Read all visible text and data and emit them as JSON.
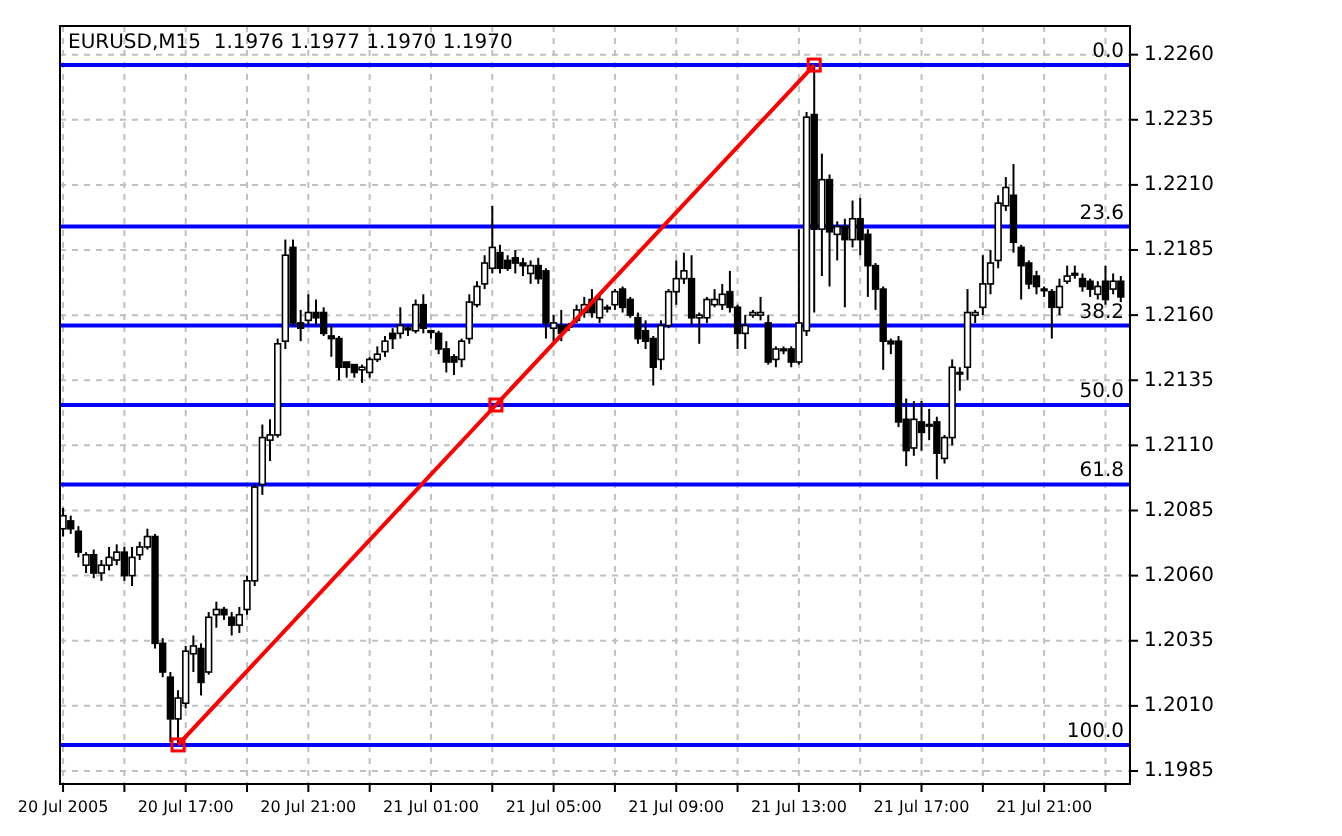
{
  "chart_data": {
    "type": "candlestick",
    "title": "EURUSD,M15  1.1976 1.1977 1.1970 1.1970",
    "color": "#000000",
    "x": [
      "2005-07-20T13:00",
      "2005-07-20T13:15",
      "2005-07-20T13:30",
      "2005-07-20T13:45",
      "2005-07-20T14:00",
      "2005-07-20T14:15",
      "2005-07-20T14:30",
      "2005-07-20T14:45",
      "2005-07-20T15:00",
      "2005-07-20T15:15",
      "2005-07-20T15:30",
      "2005-07-20T15:45",
      "2005-07-20T16:00",
      "2005-07-20T16:15",
      "2005-07-20T16:30",
      "2005-07-20T16:45",
      "2005-07-20T17:00",
      "2005-07-20T17:15",
      "2005-07-20T17:30",
      "2005-07-20T17:45",
      "2005-07-20T18:00",
      "2005-07-20T18:15",
      "2005-07-20T18:30",
      "2005-07-20T18:45",
      "2005-07-20T19:00",
      "2005-07-20T19:15",
      "2005-07-20T19:30",
      "2005-07-20T19:45",
      "2005-07-20T20:00",
      "2005-07-20T20:15",
      "2005-07-20T20:30",
      "2005-07-20T20:45",
      "2005-07-20T21:00",
      "2005-07-20T21:15",
      "2005-07-20T21:30",
      "2005-07-20T21:45",
      "2005-07-20T22:00",
      "2005-07-20T22:15",
      "2005-07-20T22:30",
      "2005-07-20T22:45",
      "2005-07-20T23:00",
      "2005-07-20T23:15",
      "2005-07-20T23:30",
      "2005-07-20T23:45",
      "2005-07-21T00:00",
      "2005-07-21T00:15",
      "2005-07-21T00:30",
      "2005-07-21T00:45",
      "2005-07-21T01:00",
      "2005-07-21T01:15",
      "2005-07-21T01:30",
      "2005-07-21T01:45",
      "2005-07-21T02:00",
      "2005-07-21T02:15",
      "2005-07-21T02:30",
      "2005-07-21T02:45",
      "2005-07-21T03:00",
      "2005-07-21T03:15",
      "2005-07-21T03:30",
      "2005-07-21T03:45",
      "2005-07-21T04:00",
      "2005-07-21T04:15",
      "2005-07-21T04:30",
      "2005-07-21T04:45",
      "2005-07-21T05:00",
      "2005-07-21T05:15",
      "2005-07-21T05:30",
      "2005-07-21T05:45",
      "2005-07-21T06:00",
      "2005-07-21T06:15",
      "2005-07-21T06:30",
      "2005-07-21T06:45",
      "2005-07-21T07:00",
      "2005-07-21T07:15",
      "2005-07-21T07:30",
      "2005-07-21T07:45",
      "2005-07-21T08:00",
      "2005-07-21T08:15",
      "2005-07-21T08:30",
      "2005-07-21T08:45",
      "2005-07-21T09:00",
      "2005-07-21T09:15",
      "2005-07-21T09:30",
      "2005-07-21T09:45",
      "2005-07-21T10:00",
      "2005-07-21T10:15",
      "2005-07-21T10:30",
      "2005-07-21T10:45",
      "2005-07-21T11:00",
      "2005-07-21T11:15",
      "2005-07-21T11:30",
      "2005-07-21T11:45",
      "2005-07-21T12:00",
      "2005-07-21T12:15",
      "2005-07-21T12:30",
      "2005-07-21T12:45",
      "2005-07-21T13:00",
      "2005-07-21T13:15",
      "2005-07-21T13:30",
      "2005-07-21T13:45",
      "2005-07-21T14:00",
      "2005-07-21T14:15",
      "2005-07-21T14:30",
      "2005-07-21T14:45",
      "2005-07-21T15:00",
      "2005-07-21T15:15",
      "2005-07-21T15:30",
      "2005-07-21T15:45",
      "2005-07-21T16:00",
      "2005-07-21T16:15",
      "2005-07-21T16:30",
      "2005-07-21T16:45",
      "2005-07-21T17:00",
      "2005-07-21T17:15",
      "2005-07-21T17:30",
      "2005-07-21T17:45",
      "2005-07-21T18:00",
      "2005-07-21T18:15",
      "2005-07-21T18:30",
      "2005-07-21T18:45",
      "2005-07-21T19:00",
      "2005-07-21T19:15",
      "2005-07-21T19:30",
      "2005-07-21T19:45",
      "2005-07-21T20:00",
      "2005-07-21T20:15",
      "2005-07-21T20:30",
      "2005-07-21T20:45",
      "2005-07-21T21:00",
      "2005-07-21T21:15",
      "2005-07-21T21:30",
      "2005-07-21T21:45",
      "2005-07-21T22:00",
      "2005-07-21T22:15",
      "2005-07-21T22:30",
      "2005-07-21T22:45",
      "2005-07-21T23:00",
      "2005-07-21T23:15",
      "2005-07-21T23:30"
    ],
    "ohlc": [
      [
        1.2078,
        1.2086,
        1.2075,
        1.2083
      ],
      [
        1.2081,
        1.2083,
        1.2076,
        1.2078
      ],
      [
        1.2077,
        1.2079,
        1.2067,
        1.2069
      ],
      [
        1.2064,
        1.2069,
        1.2061,
        1.2068
      ],
      [
        1.2068,
        1.207,
        1.2059,
        1.2061
      ],
      [
        1.2061,
        1.2066,
        1.2058,
        1.2064
      ],
      [
        1.2064,
        1.2071,
        1.2062,
        1.2067
      ],
      [
        1.2066,
        1.2072,
        1.2064,
        1.2069
      ],
      [
        1.2069,
        1.2071,
        1.2058,
        1.206
      ],
      [
        1.206,
        1.2071,
        1.2056,
        1.2067
      ],
      [
        1.2068,
        1.2073,
        1.2066,
        1.2071
      ],
      [
        1.2071,
        1.2078,
        1.207,
        1.2075
      ],
      [
        1.2075,
        1.2076,
        1.2032,
        1.2034
      ],
      [
        1.2034,
        1.2036,
        1.2021,
        1.2023
      ],
      [
        1.2021,
        1.2023,
        1.1996,
        1.2005
      ],
      [
        1.2005,
        1.2016,
        1.1995,
        1.2013
      ],
      [
        1.2011,
        1.2033,
        1.2009,
        1.2031
      ],
      [
        1.203,
        1.2037,
        1.2023,
        1.2033
      ],
      [
        1.2032,
        1.2034,
        1.2014,
        1.2019
      ],
      [
        1.2023,
        1.2046,
        1.2022,
        1.2044
      ],
      [
        1.2045,
        1.205,
        1.204,
        1.2047
      ],
      [
        1.2047,
        1.2048,
        1.2043,
        1.2045
      ],
      [
        1.2044,
        1.2046,
        1.2037,
        1.2041
      ],
      [
        1.2041,
        1.2048,
        1.2038,
        1.2045
      ],
      [
        1.2047,
        1.206,
        1.2045,
        1.2058
      ],
      [
        1.2058,
        1.2095,
        1.2056,
        1.2094
      ],
      [
        1.2095,
        1.2118,
        1.2091,
        1.2113
      ],
      [
        1.2112,
        1.212,
        1.2104,
        1.2114
      ],
      [
        1.2114,
        1.2151,
        1.2113,
        1.2149
      ],
      [
        1.215,
        1.2189,
        1.2147,
        1.2183
      ],
      [
        1.2186,
        1.2189,
        1.2156,
        1.2157
      ],
      [
        1.2157,
        1.2162,
        1.215,
        1.2155
      ],
      [
        1.2158,
        1.2168,
        1.2156,
        1.2161
      ],
      [
        1.2161,
        1.2166,
        1.2156,
        1.2159
      ],
      [
        1.2161,
        1.2163,
        1.2152,
        1.2153
      ],
      [
        1.2152,
        1.2156,
        1.2144,
        1.2151
      ],
      [
        1.2151,
        1.2152,
        1.2135,
        1.214
      ],
      [
        1.2142,
        1.2142,
        1.2136,
        1.214
      ],
      [
        1.2141,
        1.2141,
        1.2136,
        1.2138
      ],
      [
        1.2139,
        1.2141,
        1.2134,
        1.214
      ],
      [
        1.2138,
        1.2144,
        1.2136,
        1.2143
      ],
      [
        1.2143,
        1.2148,
        1.2142,
        1.2145
      ],
      [
        1.2146,
        1.2152,
        1.2144,
        1.215
      ],
      [
        1.2153,
        1.2155,
        1.2147,
        1.2151
      ],
      [
        1.2153,
        1.2163,
        1.2151,
        1.2156
      ],
      [
        1.2155,
        1.2156,
        1.2152,
        1.2155
      ],
      [
        1.2154,
        1.2166,
        1.2153,
        1.2164
      ],
      [
        1.2164,
        1.2168,
        1.2153,
        1.2155
      ],
      [
        1.2154,
        1.2154,
        1.2151,
        1.2154
      ],
      [
        1.2153,
        1.2154,
        1.2145,
        1.2147
      ],
      [
        1.2147,
        1.215,
        1.2138,
        1.2142
      ],
      [
        1.2144,
        1.2145,
        1.2137,
        1.2142
      ],
      [
        1.2143,
        1.2151,
        1.214,
        1.215
      ],
      [
        1.2151,
        1.2168,
        1.2149,
        1.2165
      ],
      [
        1.2164,
        1.2173,
        1.2163,
        1.2171
      ],
      [
        1.2172,
        1.2183,
        1.217,
        1.218
      ],
      [
        1.2178,
        1.2202,
        1.2176,
        1.2186
      ],
      [
        1.2184,
        1.2187,
        1.2176,
        1.2178
      ],
      [
        1.2181,
        1.2183,
        1.2177,
        1.2178
      ],
      [
        1.2182,
        1.2185,
        1.2176,
        1.218
      ],
      [
        1.218,
        1.2182,
        1.2175,
        1.2179
      ],
      [
        1.2176,
        1.2181,
        1.2172,
        1.2179
      ],
      [
        1.2179,
        1.2182,
        1.2172,
        1.2174
      ],
      [
        1.2177,
        1.2178,
        1.2151,
        1.2157
      ],
      [
        1.2155,
        1.216,
        1.215,
        1.2157
      ],
      [
        1.2156,
        1.2162,
        1.215,
        1.2153
      ],
      [
        1.2156,
        1.2157,
        1.2154,
        1.2156
      ],
      [
        1.2158,
        1.2164,
        1.2157,
        1.2162
      ],
      [
        1.2161,
        1.2167,
        1.2159,
        1.2164
      ],
      [
        1.2166,
        1.217,
        1.2159,
        1.2161
      ],
      [
        1.2159,
        1.2168,
        1.2157,
        1.2166
      ],
      [
        1.2163,
        1.2164,
        1.2161,
        1.2163
      ],
      [
        1.2164,
        1.217,
        1.2162,
        1.2169
      ],
      [
        1.217,
        1.2171,
        1.2161,
        1.2163
      ],
      [
        1.2166,
        1.2167,
        1.2159,
        1.216
      ],
      [
        1.2159,
        1.2161,
        1.2149,
        1.2151
      ],
      [
        1.2154,
        1.2158,
        1.2147,
        1.215
      ],
      [
        1.2151,
        1.2152,
        1.2133,
        1.214
      ],
      [
        1.2143,
        1.2158,
        1.2139,
        1.2156
      ],
      [
        1.2156,
        1.217,
        1.2155,
        1.2169
      ],
      [
        1.2169,
        1.2181,
        1.2164,
        1.2174
      ],
      [
        1.2174,
        1.2184,
        1.2172,
        1.2177
      ],
      [
        1.2174,
        1.2183,
        1.2156,
        1.2159
      ],
      [
        1.2159,
        1.2161,
        1.2149,
        1.216
      ],
      [
        1.2159,
        1.2167,
        1.2157,
        1.2166
      ],
      [
        1.2164,
        1.217,
        1.2163,
        1.2166
      ],
      [
        1.2164,
        1.2172,
        1.2162,
        1.2168
      ],
      [
        1.2169,
        1.2177,
        1.2161,
        1.2163
      ],
      [
        1.2163,
        1.2164,
        1.2147,
        1.2153
      ],
      [
        1.2153,
        1.216,
        1.2147,
        1.2156
      ],
      [
        1.216,
        1.2162,
        1.2159,
        1.2161
      ],
      [
        1.216,
        1.2167,
        1.2158,
        1.2161
      ],
      [
        1.2157,
        1.216,
        1.2141,
        1.2142
      ],
      [
        1.2143,
        1.2148,
        1.214,
        1.2147
      ],
      [
        1.2147,
        1.2148,
        1.2145,
        1.2147
      ],
      [
        1.2147,
        1.2148,
        1.214,
        1.2142
      ],
      [
        1.2142,
        1.2193,
        1.2141,
        1.2157
      ],
      [
        1.2154,
        1.2238,
        1.2152,
        1.2236
      ],
      [
        1.2237,
        1.2256,
        1.2161,
        1.2193
      ],
      [
        1.2193,
        1.2222,
        1.2175,
        1.2212
      ],
      [
        1.2212,
        1.2214,
        1.2171,
        1.2192
      ],
      [
        1.2191,
        1.2196,
        1.2181,
        1.2194
      ],
      [
        1.2194,
        1.2197,
        1.2163,
        1.2189
      ],
      [
        1.2189,
        1.2204,
        1.2186,
        1.2197
      ],
      [
        1.2197,
        1.2205,
        1.2183,
        1.2189
      ],
      [
        1.2191,
        1.2193,
        1.2167,
        1.2179
      ],
      [
        1.2179,
        1.218,
        1.2162,
        1.217
      ],
      [
        1.217,
        1.2171,
        1.2139,
        1.215
      ],
      [
        1.215,
        1.2151,
        1.2145,
        1.2149
      ],
      [
        1.215,
        1.2152,
        1.2117,
        1.2119
      ],
      [
        1.212,
        1.2128,
        1.2102,
        1.2108
      ],
      [
        1.2109,
        1.2127,
        1.2106,
        1.212
      ],
      [
        1.2119,
        1.2127,
        1.2108,
        1.2115
      ],
      [
        1.2118,
        1.2124,
        1.2112,
        1.2118
      ],
      [
        1.2119,
        1.2121,
        1.2097,
        1.2107
      ],
      [
        1.2105,
        1.2114,
        1.2103,
        1.2113
      ],
      [
        1.2113,
        1.2143,
        1.211,
        1.214
      ],
      [
        1.2138,
        1.214,
        1.2131,
        1.2138
      ],
      [
        1.214,
        1.217,
        1.2135,
        1.2161
      ],
      [
        1.216,
        1.2162,
        1.2157,
        1.2161
      ],
      [
        1.2163,
        1.2183,
        1.216,
        1.2172
      ],
      [
        1.2172,
        1.2185,
        1.2168,
        1.218
      ],
      [
        1.2181,
        1.2206,
        1.2178,
        1.2203
      ],
      [
        1.2202,
        1.2213,
        1.22,
        1.2209
      ],
      [
        1.2206,
        1.2218,
        1.2184,
        1.2188
      ],
      [
        1.2186,
        1.2187,
        1.2166,
        1.2179
      ],
      [
        1.218,
        1.2181,
        1.217,
        1.2172
      ],
      [
        1.2175,
        1.2177,
        1.2168,
        1.2171
      ],
      [
        1.217,
        1.2171,
        1.2167,
        1.217
      ],
      [
        1.2169,
        1.217,
        1.2151,
        1.2163
      ],
      [
        1.2163,
        1.2174,
        1.216,
        1.2171
      ],
      [
        1.2173,
        1.2179,
        1.2172,
        1.2175
      ],
      [
        1.2176,
        1.2179,
        1.2174,
        1.2176
      ],
      [
        1.2174,
        1.2176,
        1.2169,
        1.2171
      ],
      [
        1.2173,
        1.2174,
        1.2167,
        1.217
      ],
      [
        1.2168,
        1.2173,
        1.2166,
        1.2171
      ],
      [
        1.2173,
        1.2179,
        1.2164,
        1.2166
      ],
      [
        1.217,
        1.2176,
        1.2168,
        1.2173
      ],
      [
        1.2173,
        1.2175,
        1.2165,
        1.2167
      ]
    ],
    "series": [
      {
        "type": "line",
        "color": "#ff0000",
        "x": [
          "2005-07-20T16:45",
          "2005-07-21T03:07",
          "2005-07-21T13:30"
        ],
        "values": [
          1.1995,
          1.21255,
          1.2256
        ]
      }
    ],
    "marker": "square",
    "ref_lines": [
      {
        "axis": "y",
        "value": 1.2256,
        "color": "#0000ff"
      },
      {
        "axis": "y",
        "value": 1.2194,
        "color": "#0000ff"
      },
      {
        "axis": "y",
        "value": 1.2156,
        "color": "#0000ff"
      },
      {
        "axis": "y",
        "value": 1.21255,
        "color": "#0000ff"
      },
      {
        "axis": "y",
        "value": 1.2095,
        "color": "#0000ff"
      },
      {
        "axis": "y",
        "value": 1.1995,
        "color": "#0000ff"
      }
    ],
    "annotations": [
      {
        "text": "0.0",
        "x": "2005-07-21T23:45",
        "y": 1.2256
      },
      {
        "text": "23.6",
        "x": "2005-07-21T23:45",
        "y": 1.2194
      },
      {
        "text": "38.2",
        "x": "2005-07-21T23:45",
        "y": 1.2156
      },
      {
        "text": "50.0",
        "x": "2005-07-21T23:45",
        "y": 1.21255
      },
      {
        "text": "61.8",
        "x": "2005-07-21T23:45",
        "y": 1.2095
      },
      {
        "text": "100.0",
        "x": "2005-07-21T23:45",
        "y": 1.1995
      }
    ],
    "xlim": [
      "2005-07-20T12:54",
      "2005-07-21T23:48"
    ],
    "ylim": [
      1.198,
      1.2271
    ],
    "xticks": [
      {
        "value": "2005-07-20T13:00",
        "label": "20 Jul 2005"
      },
      {
        "value": "2005-07-20T15:00",
        "label": null
      },
      {
        "value": "2005-07-20T17:00",
        "label": "20 Jul 17:00"
      },
      {
        "value": "2005-07-20T19:00",
        "label": null
      },
      {
        "value": "2005-07-20T21:00",
        "label": "20 Jul 21:00"
      },
      {
        "value": "2005-07-20T23:00",
        "label": null
      },
      {
        "value": "2005-07-21T01:00",
        "label": "21 Jul 01:00"
      },
      {
        "value": "2005-07-21T03:00",
        "label": null
      },
      {
        "value": "2005-07-21T05:00",
        "label": "21 Jul 05:00"
      },
      {
        "value": "2005-07-21T07:00",
        "label": null
      },
      {
        "value": "2005-07-21T09:00",
        "label": "21 Jul 09:00"
      },
      {
        "value": "2005-07-21T11:00",
        "label": null
      },
      {
        "value": "2005-07-21T13:00",
        "label": "21 Jul 13:00"
      },
      {
        "value": "2005-07-21T15:00",
        "label": null
      },
      {
        "value": "2005-07-21T17:00",
        "label": "21 Jul 17:00"
      },
      {
        "value": "2005-07-21T19:00",
        "label": null
      },
      {
        "value": "2005-07-21T21:00",
        "label": "21 Jul 21:00"
      },
      {
        "value": "2005-07-21T23:00",
        "label": null
      }
    ],
    "yticks": [
      {
        "value": 1.226,
        "label": "1.2260"
      },
      {
        "value": 1.2235,
        "label": "1.2235"
      },
      {
        "value": 1.221,
        "label": "1.2210"
      },
      {
        "value": 1.2185,
        "label": "1.2185"
      },
      {
        "value": 1.216,
        "label": "1.2160"
      },
      {
        "value": 1.2135,
        "label": "1.2135"
      },
      {
        "value": 1.211,
        "label": "1.2110"
      },
      {
        "value": 1.2085,
        "label": "1.2085"
      },
      {
        "value": 1.206,
        "label": "1.2060"
      },
      {
        "value": 1.2035,
        "label": "1.2035"
      },
      {
        "value": 1.201,
        "label": "1.2010"
      },
      {
        "value": 1.1985,
        "label": "1.1985"
      }
    ],
    "grid": true
  }
}
